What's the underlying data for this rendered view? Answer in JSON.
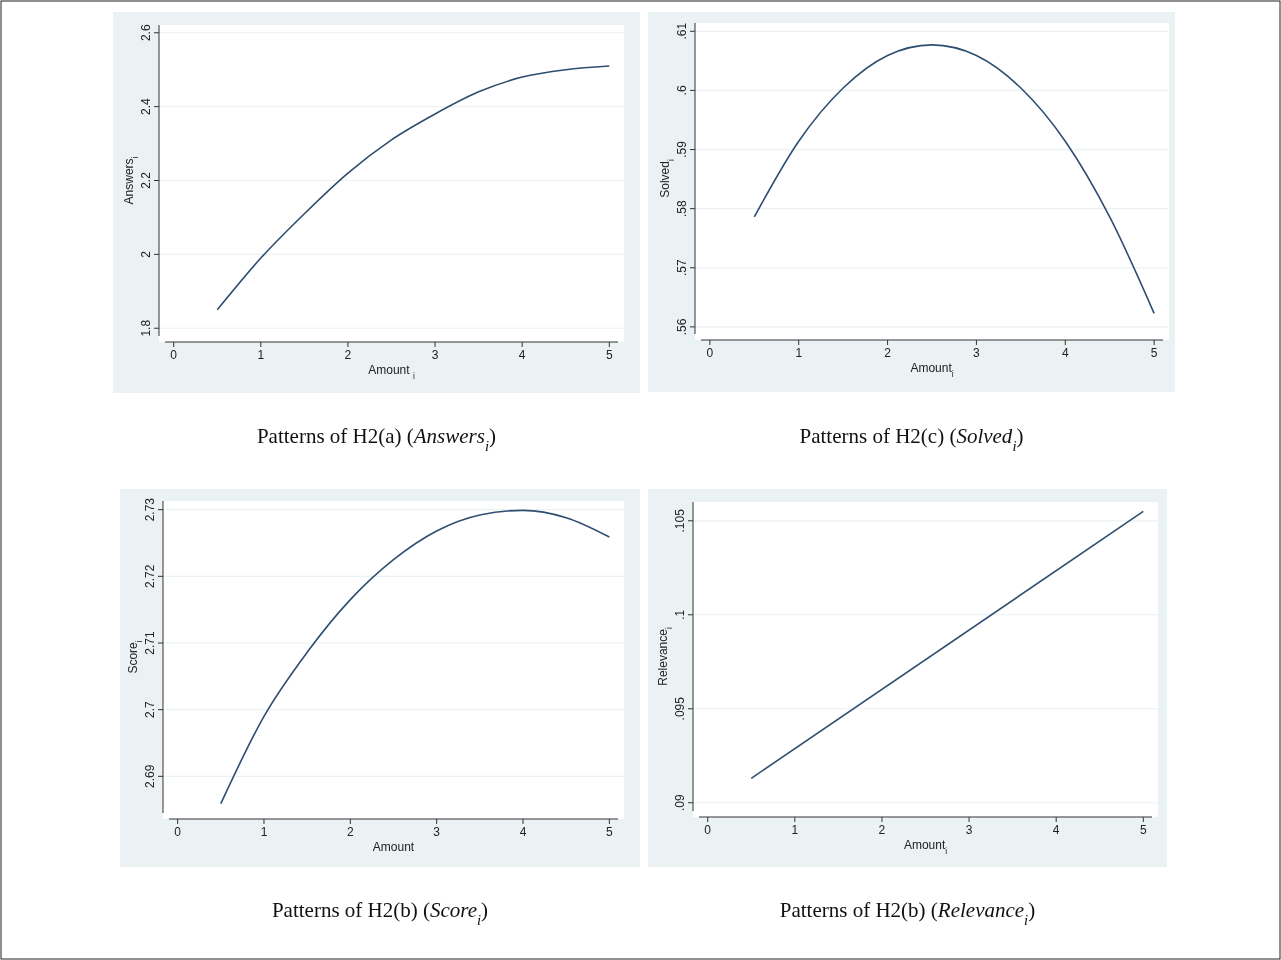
{
  "chart_data": [
    {
      "type": "line",
      "title": "Patterns of H2(a) (Answers$_{i}$)",
      "xlabel": "Amount $_{i}$",
      "ylabel": "Answers$_{i}$",
      "xlim": [
        -0.1,
        5.1
      ],
      "xticks": [
        0,
        1,
        2,
        3,
        4,
        5
      ],
      "ylim": [
        1.779,
        2.621
      ],
      "yticks": [
        1.8,
        2,
        2.2,
        2.4,
        2.6
      ],
      "grid": "y",
      "x": [
        0.5,
        1,
        1.5,
        2,
        2.5,
        3,
        3.5,
        4,
        4.5,
        5
      ],
      "series": [
        {
          "color": "#2e4e70",
          "values": [
            1.85,
            1.99,
            2.11,
            2.22,
            2.31,
            2.38,
            2.44,
            2.48,
            2.5,
            2.51
          ]
        }
      ]
    },
    {
      "type": "line",
      "title": "Patterns of H2(c) (Solved$_{i}$)",
      "xlabel": "Amount$_{i}$",
      "ylabel": "Solved$_{i}$",
      "xlim": [
        -0.1,
        5.1
      ],
      "xticks": [
        0,
        1,
        2,
        3,
        4,
        5
      ],
      "ylim": [
        0.5588,
        0.6114
      ],
      "yticks": [
        {
          "value": 0.56,
          "label": ".56"
        },
        {
          "value": 0.57,
          "label": ".57"
        },
        {
          "value": 0.58,
          "label": ".58"
        },
        {
          "value": 0.59,
          "label": ".59"
        },
        {
          "value": 0.6,
          "label": ".6"
        },
        {
          "value": 0.61,
          "label": ".61"
        }
      ],
      "grid": "y",
      "x": [
        0.5,
        1,
        1.5,
        2,
        2.5,
        3,
        3.5,
        4,
        4.5,
        5
      ],
      "series": [
        {
          "color": "#2e4e70",
          "values": [
            0.5786,
            0.5914,
            0.6004,
            0.6059,
            0.6077,
            0.6059,
            0.6004,
            0.5914,
            0.5786,
            0.5623
          ]
        }
      ]
    },
    {
      "type": "line",
      "title": "Patterns of H2(b) (Score$_{i}$)",
      "xlabel": "Amount",
      "ylabel": "Score$_{i}$",
      "xlim": [
        -0.1,
        5.1
      ],
      "xticks": [
        0,
        1,
        2,
        3,
        4,
        5
      ],
      "ylim": [
        2.6845,
        2.7313
      ],
      "yticks": [
        2.69,
        2.7,
        2.71,
        2.72,
        2.73
      ],
      "grid": "y",
      "x": [
        0.5,
        1,
        1.5,
        2,
        2.5,
        3,
        3.5,
        4,
        4.5,
        5
      ],
      "series": [
        {
          "color": "#2e4e70",
          "values": [
            2.6859,
            2.699,
            2.7086,
            2.7165,
            2.7225,
            2.7268,
            2.7292,
            2.7299,
            2.7288,
            2.7259
          ]
        }
      ]
    },
    {
      "type": "line",
      "title": "Patterns of H2(b) (Relevance$_{i}$)",
      "xlabel": "Amount$_{i}$",
      "ylabel": "Relevance$_{i}$",
      "xlim": [
        -0.1,
        5.1
      ],
      "xticks": [
        0,
        1,
        2,
        3,
        4,
        5
      ],
      "ylim": [
        0.08956,
        0.106
      ],
      "yticks": [
        {
          "value": 0.09,
          "label": ".09"
        },
        {
          "value": 0.095,
          "label": ".095"
        },
        {
          "value": 0.1,
          "label": ".1"
        },
        {
          "value": 0.105,
          "label": ".105"
        }
      ],
      "grid": "y",
      "x": [
        0.5,
        5
      ],
      "series": [
        {
          "color": "#2e4e70",
          "values": [
            0.0913,
            0.1055
          ]
        }
      ]
    }
  ]
}
